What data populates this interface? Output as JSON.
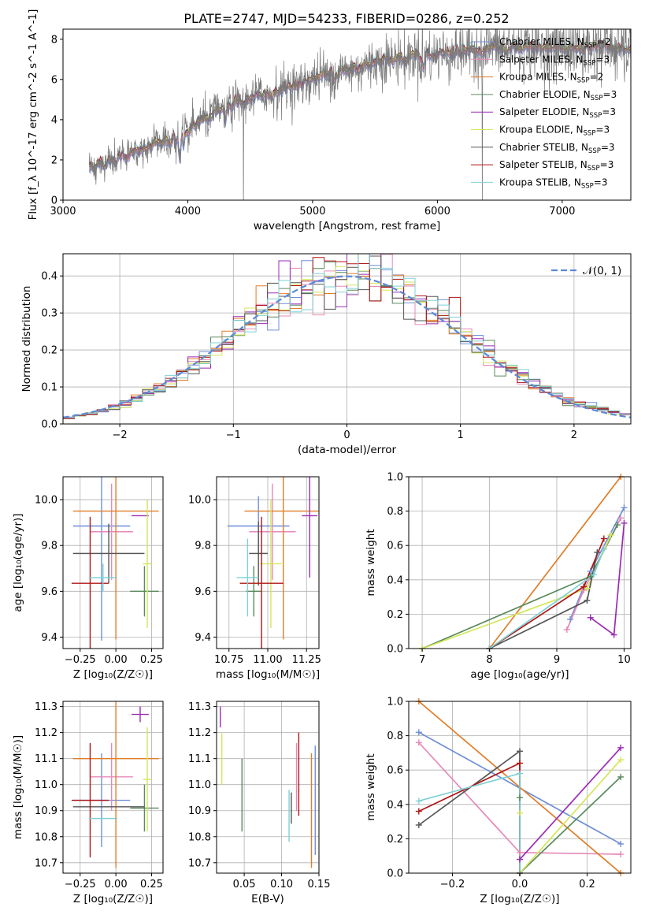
{
  "figure_title": "PLATE=2747, MJD=54233, FIBERID=0286, z=0.252",
  "colors": {
    "Chabrier MILES": "#6f8fd8",
    "Salpeter MILES": "#e68ab8",
    "Kroupa MILES": "#e07e28",
    "Chabrier ELODIE": "#5a8a5e",
    "Salpeter ELODIE": "#9a2bb5",
    "Kroupa ELODIE": "#d4e65a",
    "Chabrier STELIB": "#555555",
    "Salpeter STELIB": "#b01515",
    "Kroupa STELIB": "#7fd0d4",
    "normal": "#5b8ad6",
    "grid": "#b0b0b0"
  },
  "chart_data": [
    {
      "id": "spectrum",
      "type": "line",
      "title": "PLATE=2747, MJD=54233, FIBERID=0286, z=0.252",
      "xlabel": "wavelength [Angstrom, rest frame]",
      "ylabel": "Flux [f_λ 10^-17 erg cm^-2 s^-1 A^-1]",
      "xlim": [
        3000,
        7550
      ],
      "ylim": [
        0,
        8.5
      ],
      "xticks": [
        "3000",
        "4000",
        "5000",
        "6000",
        "7000"
      ],
      "yticks": [
        "0",
        "2",
        "4",
        "6",
        "8"
      ],
      "grid": false,
      "legend_position": "top-right",
      "legend": [
        {
          "label": "Chabrier MILES, N",
          "sub": "SSP",
          "suffix": "=2"
        },
        {
          "label": "Salpeter MILES, N",
          "sub": "SSP",
          "suffix": "=3"
        },
        {
          "label": "Kroupa MILES, N",
          "sub": "SSP",
          "suffix": "=2"
        },
        {
          "label": "Chabrier ELODIE, N",
          "sub": "SSP",
          "suffix": "=3"
        },
        {
          "label": "Salpeter ELODIE, N",
          "sub": "SSP",
          "suffix": "=3"
        },
        {
          "label": "Kroupa ELODIE, N",
          "sub": "SSP",
          "suffix": "=3"
        },
        {
          "label": "Chabrier STELIB, N",
          "sub": "SSP",
          "suffix": "=3"
        },
        {
          "label": "Salpeter STELIB, N",
          "sub": "SSP",
          "suffix": "=3"
        },
        {
          "label": "Kroupa STELIB, N",
          "sub": "SSP",
          "suffix": "=3"
        }
      ],
      "continuum": {
        "x": [
          3210,
          3400,
          3600,
          3800,
          3950,
          4100,
          4300,
          4500,
          4700,
          4900,
          5100,
          5300,
          5500,
          5700,
          5900,
          6100,
          6400,
          6700,
          7000,
          7300,
          7550
        ],
        "y": [
          1.6,
          2.0,
          2.4,
          2.9,
          3.1,
          4.0,
          4.6,
          5.0,
          5.4,
          5.8,
          6.2,
          6.5,
          6.8,
          7.0,
          7.2,
          7.4,
          7.5,
          7.5,
          7.6,
          7.6,
          7.6
        ]
      }
    },
    {
      "id": "residuals",
      "type": "histogram",
      "xlabel": "(data-model)/error",
      "ylabel": "Normed distribution",
      "xlim": [
        -2.5,
        2.5
      ],
      "ylim": [
        0,
        0.46
      ],
      "xticks": [
        "−2",
        "−1",
        "0",
        "1",
        "2"
      ],
      "yticks": [
        "0.0",
        "0.1",
        "0.2",
        "0.3",
        "0.4"
      ],
      "grid": true,
      "bin_width": 0.1,
      "legend": "𝒩(0, 1)",
      "legend_position": "top-right",
      "curve": "normal pdf, mean 0, sigma 1"
    },
    {
      "id": "age-vs-Z",
      "type": "errorbar",
      "xlabel": "Z [log₁₀(Z/Z☉)]",
      "ylabel": "age  [log₁₀(age/yr)]",
      "xlim": [
        -0.37,
        0.33
      ],
      "ylim": [
        9.35,
        10.1
      ],
      "xticks": [
        "−0.25",
        "0.00",
        "0.25"
      ],
      "yticks": [
        "9.4",
        "9.6",
        "9.8",
        "10.0"
      ],
      "grid": true,
      "points": [
        {
          "model": "Chabrier MILES",
          "x": -0.1,
          "xerr": 0.2,
          "y": 9.885,
          "yerr": 0.5
        },
        {
          "model": "Salpeter MILES",
          "x": -0.03,
          "xerr": 0.15,
          "y": 9.86,
          "yerr": 0.21
        },
        {
          "model": "Kroupa MILES",
          "x": 0.0,
          "xerr": 0.3,
          "y": 9.95,
          "yerr": 0.56
        },
        {
          "model": "Chabrier ELODIE",
          "x": 0.2,
          "xerr": 0.1,
          "y": 9.6,
          "yerr": 0.11
        },
        {
          "model": "Salpeter ELODIE",
          "x": 0.17,
          "xerr": 0.06,
          "y": 9.93,
          "yerr": 0.0
        },
        {
          "model": "Kroupa ELODIE",
          "x": 0.22,
          "xerr": 0.03,
          "y": 9.72,
          "yerr": 0.28
        },
        {
          "model": "Chabrier STELIB",
          "x": -0.05,
          "xerr": 0.25,
          "y": 9.765,
          "yerr": 0.13
        },
        {
          "model": "Salpeter STELIB",
          "x": -0.18,
          "xerr": 0.13,
          "y": 9.635,
          "yerr": 0.29
        },
        {
          "model": "Kroupa STELIB",
          "x": -0.09,
          "xerr": 0.1,
          "y": 9.66,
          "yerr": 0.06
        }
      ]
    },
    {
      "id": "age-vs-mass",
      "type": "errorbar",
      "xlabel": "mass [log₁₀(M/M☉)]",
      "ylabel": "",
      "xlim": [
        10.67,
        11.33
      ],
      "ylim": [
        9.35,
        10.1
      ],
      "xticks": [
        "10.75",
        "11.00",
        "11.25"
      ],
      "yticks": [
        "9.4",
        "9.6",
        "9.8",
        "10.0"
      ],
      "grid": true,
      "points": [
        {
          "model": "Chabrier MILES",
          "x": 10.94,
          "xerr": 0.2,
          "y": 9.885,
          "yerr": 0.13
        },
        {
          "model": "Salpeter MILES",
          "x": 11.03,
          "xerr": 0.15,
          "y": 9.86,
          "yerr": 0.21
        },
        {
          "model": "Kroupa MILES",
          "x": 11.1,
          "xerr": 0.25,
          "y": 9.95,
          "yerr": 0.56
        },
        {
          "model": "Chabrier ELODIE",
          "x": 10.91,
          "xerr": 0.05,
          "y": 9.6,
          "yerr": 0.11
        },
        {
          "model": "Salpeter ELODIE",
          "x": 11.27,
          "xerr": 0.05,
          "y": 9.93,
          "yerr": 0.27
        },
        {
          "model": "Kroupa ELODIE",
          "x": 11.02,
          "xerr": 0.07,
          "y": 9.72,
          "yerr": 0.28
        },
        {
          "model": "Chabrier STELIB",
          "x": 10.94,
          "xerr": 0.06,
          "y": 9.765,
          "yerr": 0.14
        },
        {
          "model": "Salpeter STELIB",
          "x": 10.96,
          "xerr": 0.14,
          "y": 9.635,
          "yerr": 0.29
        },
        {
          "model": "Kroupa STELIB",
          "x": 10.87,
          "xerr": 0.07,
          "y": 9.66,
          "yerr": 0.17
        }
      ]
    },
    {
      "id": "mass-weight-vs-age",
      "type": "line",
      "xlabel": "age  [log₁₀(age/yr)]",
      "ylabel": "mass weight",
      "xlim": [
        6.8,
        10.1
      ],
      "ylim": [
        0,
        1
      ],
      "xticks": [
        "7",
        "8",
        "9",
        "10"
      ],
      "yticks": [
        "0.0",
        "0.2",
        "0.4",
        "0.6",
        "0.8",
        "1.0"
      ],
      "grid": true,
      "series": [
        {
          "model": "Chabrier MILES",
          "x": [
            9.2,
            9.5,
            10.0
          ],
          "y": [
            0.17,
            0.45,
            0.82
          ]
        },
        {
          "model": "Salpeter MILES",
          "x": [
            9.15,
            9.4,
            9.95
          ],
          "y": [
            0.11,
            0.34,
            0.76
          ]
        },
        {
          "model": "Kroupa MILES",
          "x": [
            8.0,
            9.95
          ],
          "y": [
            0.0,
            1.0
          ]
        },
        {
          "model": "Chabrier ELODIE",
          "x": [
            7.0,
            9.5,
            9.9
          ],
          "y": [
            0.0,
            0.42,
            0.72
          ]
        },
        {
          "model": "Salpeter ELODIE",
          "x": [
            9.5,
            9.85,
            10.0
          ],
          "y": [
            0.18,
            0.08,
            0.73
          ]
        },
        {
          "model": "Kroupa ELODIE",
          "x": [
            7.0,
            9.45,
            9.8
          ],
          "y": [
            0.0,
            0.35,
            0.66
          ]
        },
        {
          "model": "Chabrier STELIB",
          "x": [
            8.0,
            9.45,
            9.6
          ],
          "y": [
            0.0,
            0.28,
            0.56
          ]
        },
        {
          "model": "Salpeter STELIB",
          "x": [
            8.0,
            9.4,
            9.7
          ],
          "y": [
            0.0,
            0.36,
            0.64
          ]
        },
        {
          "model": "Kroupa STELIB",
          "x": [
            8.0,
            9.55,
            9.7
          ],
          "y": [
            0.0,
            0.43,
            0.58
          ]
        }
      ]
    },
    {
      "id": "mass-vs-Z",
      "type": "errorbar",
      "xlabel": "Z [log₁₀(Z/Z☉)]",
      "ylabel": "mass [log₁₀(M/M☉)]",
      "xlim": [
        -0.37,
        0.33
      ],
      "ylim": [
        10.66,
        11.32
      ],
      "xticks": [
        "−0.25",
        "0.00",
        "0.25"
      ],
      "yticks": [
        "10.7",
        "10.8",
        "10.9",
        "11.0",
        "11.1",
        "11.2",
        "11.3"
      ],
      "grid": true,
      "points": [
        {
          "model": "Chabrier MILES",
          "x": -0.1,
          "xerr": 0.2,
          "y": 10.94,
          "yerr": 0.18
        },
        {
          "model": "Salpeter MILES",
          "x": -0.03,
          "xerr": 0.15,
          "y": 11.03,
          "yerr": 0.13
        },
        {
          "model": "Kroupa MILES",
          "x": 0.0,
          "xerr": 0.3,
          "y": 11.1,
          "yerr": 0.42
        },
        {
          "model": "Chabrier ELODIE",
          "x": 0.2,
          "xerr": 0.1,
          "y": 10.91,
          "yerr": 0.09
        },
        {
          "model": "Salpeter ELODIE",
          "x": 0.17,
          "xerr": 0.06,
          "y": 11.27,
          "yerr": 0.03
        },
        {
          "model": "Kroupa ELODIE",
          "x": 0.22,
          "xerr": 0.03,
          "y": 11.02,
          "yerr": 0.2
        },
        {
          "model": "Chabrier STELIB",
          "x": -0.05,
          "xerr": 0.25,
          "y": 10.915,
          "yerr": 0.0
        },
        {
          "model": "Salpeter STELIB",
          "x": -0.18,
          "xerr": 0.13,
          "y": 10.94,
          "yerr": 0.22
        },
        {
          "model": "Kroupa STELIB",
          "x": -0.09,
          "xerr": 0.1,
          "y": 10.87,
          "yerr": 0.0
        }
      ]
    },
    {
      "id": "mass-vs-ebv",
      "type": "errorbar",
      "xlabel": "E(B-V)",
      "ylabel": "",
      "xlim": [
        0.013,
        0.15
      ],
      "ylim": [
        10.66,
        11.32
      ],
      "xticks": [
        "0.05",
        "0.10",
        "0.15"
      ],
      "yticks": [
        "10.7",
        "10.8",
        "10.9",
        "11.0",
        "11.1",
        "11.2",
        "11.3"
      ],
      "grid": true,
      "points": [
        {
          "model": "Chabrier MILES",
          "x": 0.145,
          "xerr": 0,
          "y": 10.94,
          "yerr": 0.21
        },
        {
          "model": "Salpeter MILES",
          "x": 0.12,
          "xerr": 0,
          "y": 11.03,
          "yerr": 0.13
        },
        {
          "model": "Kroupa MILES",
          "x": 0.14,
          "xerr": 0,
          "y": 10.9,
          "yerr": 0.22
        },
        {
          "model": "Chabrier ELODIE",
          "x": 0.047,
          "xerr": 0,
          "y": 10.96,
          "yerr": 0.14
        },
        {
          "model": "Salpeter ELODIE",
          "x": 0.018,
          "xerr": 0,
          "y": 11.26,
          "yerr": 0.04
        },
        {
          "model": "Kroupa ELODIE",
          "x": 0.02,
          "xerr": 0,
          "y": 11.1,
          "yerr": 0.1
        },
        {
          "model": "Chabrier STELIB",
          "x": 0.113,
          "xerr": 0,
          "y": 10.91,
          "yerr": 0.06
        },
        {
          "model": "Salpeter STELIB",
          "x": 0.123,
          "xerr": 0,
          "y": 11.04,
          "yerr": 0.16
        },
        {
          "model": "Kroupa STELIB",
          "x": 0.11,
          "xerr": 0,
          "y": 10.88,
          "yerr": 0.1
        }
      ]
    },
    {
      "id": "mass-weight-vs-Z",
      "type": "line",
      "xlabel": "Z [log₁₀(Z/Z☉)]",
      "ylabel": "mass weight",
      "xlim": [
        -0.33,
        0.33
      ],
      "ylim": [
        0,
        1
      ],
      "xticks": [
        "−0.2",
        "0.0",
        "0.2"
      ],
      "yticks": [
        "0.0",
        "0.2",
        "0.4",
        "0.6",
        "0.8",
        "1.0"
      ],
      "grid": true,
      "series": [
        {
          "model": "Chabrier MILES",
          "x": [
            -0.3,
            0.3
          ],
          "y": [
            0.82,
            0.17
          ]
        },
        {
          "model": "Salpeter MILES",
          "x": [
            -0.3,
            0.0,
            0.3
          ],
          "y": [
            0.76,
            0.12,
            0.11
          ]
        },
        {
          "model": "Kroupa MILES",
          "x": [
            -0.3,
            0.3
          ],
          "y": [
            1.0,
            0.0
          ]
        },
        {
          "model": "Chabrier ELODIE",
          "x": [
            0.0,
            0.0,
            0.3
          ],
          "y": [
            0.44,
            0.0,
            0.56
          ]
        },
        {
          "model": "Salpeter ELODIE",
          "x": [
            0.0,
            0.3
          ],
          "y": [
            0.08,
            0.73
          ]
        },
        {
          "model": "Kroupa ELODIE",
          "x": [
            0.0,
            0.0,
            0.3
          ],
          "y": [
            0.35,
            0.0,
            0.66
          ]
        },
        {
          "model": "Chabrier STELIB",
          "x": [
            -0.3,
            0.0,
            0.0
          ],
          "y": [
            0.28,
            0.71,
            0.0
          ]
        },
        {
          "model": "Salpeter STELIB",
          "x": [
            -0.3,
            0.0,
            0.0
          ],
          "y": [
            0.36,
            0.64,
            0.0
          ]
        },
        {
          "model": "Kroupa STELIB",
          "x": [
            -0.3,
            0.0,
            0.0
          ],
          "y": [
            0.42,
            0.58,
            0.0
          ]
        }
      ]
    }
  ]
}
